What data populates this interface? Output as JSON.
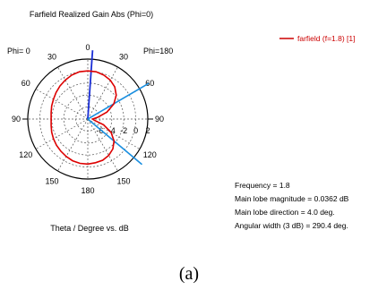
{
  "chart_data": {
    "type": "polar",
    "title": "Farfield Realized Gain Abs (Phi=0)",
    "xlabel": "Theta / Degree vs. dB",
    "phi_left_label": "Phi= 0",
    "phi_right_label": "Phi=180",
    "angle_ticks": [
      "0",
      "30",
      "60",
      "90",
      "120",
      "150",
      "180",
      "150",
      "120",
      "90",
      "60",
      "30"
    ],
    "radial_ticks": [
      "-6",
      "-4",
      "-2",
      "0",
      "2"
    ],
    "r_range_db": [
      -8,
      2
    ],
    "legend": "farfield (f=1.8) [1]",
    "series": [
      {
        "name": "farfield (f=1.8) [1]",
        "color": "#dd0000",
        "theta_deg": [
          0,
          10,
          20,
          30,
          40,
          50,
          60,
          70,
          80,
          90,
          100,
          110,
          120,
          130,
          140,
          150,
          160,
          170,
          180,
          190,
          200,
          210,
          220,
          230,
          240,
          250,
          260,
          270,
          280,
          290,
          300,
          310,
          320,
          330,
          340,
          350
        ],
        "gain_db": [
          0.036,
          0.0,
          -0.2,
          -0.5,
          -1.0,
          -1.8,
          -3.0,
          -4.6,
          -6.3,
          -7.2,
          -6.9,
          -5.2,
          -3.5,
          -2.3,
          -1.5,
          -1.0,
          -0.7,
          -0.6,
          -0.5,
          -0.5,
          -0.6,
          -0.8,
          -1.0,
          -1.2,
          -1.4,
          -1.6,
          -1.8,
          -1.9,
          -1.8,
          -1.6,
          -1.4,
          -1.1,
          -0.8,
          -0.5,
          -0.2,
          0.0
        ]
      }
    ],
    "markers": {
      "main_lobe_direction_deg": 4.0,
      "beamwidth_edges_deg": [
        59.6,
        130.0
      ],
      "main_lobe_color": "#1a2ed6",
      "beamwidth_color": "#1a8fe0"
    },
    "info": [
      "Frequency = 1.8",
      "Main lobe magnitude =   0.0362 dB",
      "Main lobe direction =   4.0 deg.",
      "Angular width (3 dB) =  290.4 deg."
    ]
  },
  "caption": "(a)"
}
